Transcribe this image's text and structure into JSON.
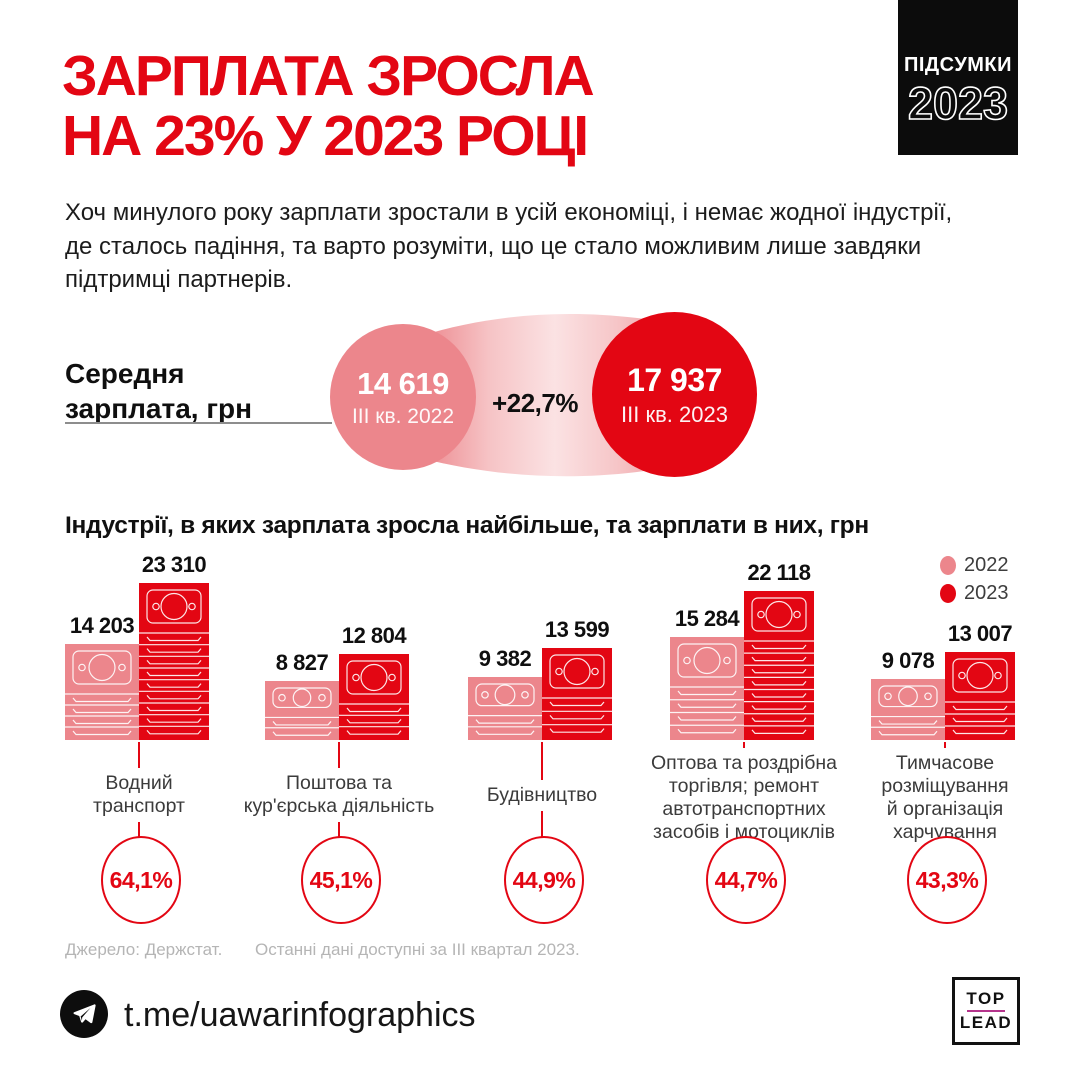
{
  "badge": {
    "line1": "ПІДСУМКИ",
    "line2": "2023"
  },
  "title": {
    "line1": "ЗАРПЛАТА ЗРОСЛА",
    "line2": "НА 23% У 2023 РОЦІ"
  },
  "intro": "Хоч минулого року зарплати зростали в усій економіці, і немає жодної індустрії, де сталось падіння, та варто розуміти, що це стало можливим лише завдяки підтримці партнерів.",
  "industries": {
    "title": "Індустрії, в яких зарплата зросла найбільше, та зарплати в них, грн",
    "legend": [
      {
        "label": "2022",
        "color": "#ec868c"
      },
      {
        "label": "2023",
        "color": "#e30613"
      }
    ]
  },
  "chart_data": [
    {
      "type": "flow-comparison",
      "title_lines": [
        "Середня",
        "зарплата, грн"
      ],
      "from": {
        "value": 14619,
        "display": "14 619",
        "label": "III кв. 2022",
        "color": "#ec868c"
      },
      "to": {
        "value": 17937,
        "display": "17 937",
        "label": "III кв. 2023",
        "color": "#e30613"
      },
      "change": "+22,7%"
    },
    {
      "type": "bar",
      "unit": "грн",
      "categories": [
        "Водний транспорт",
        "Поштова та кур'єрська діяльність",
        "Будівництво",
        "Оптова та роздрібна торгівля; ремонт автотранспортних засобів і мотоциклів",
        "Тимчасове розміщування й організація харчування"
      ],
      "category_lines": [
        [
          "Водний",
          "транспорт"
        ],
        [
          "Поштова та",
          "кур'єрська діяльність"
        ],
        [
          "Будівництво"
        ],
        [
          "Оптова та роздрібна",
          "торгівля; ремонт",
          "автотранспортних",
          "засобів і мотоциклів"
        ],
        [
          "Тимчасове",
          "розміщування",
          "й організація",
          "харчування"
        ]
      ],
      "series": [
        {
          "name": "2022",
          "color": "#ec868c",
          "values": [
            14203,
            8827,
            9382,
            15284,
            9078
          ],
          "labels": [
            "14 203",
            "8 827",
            "9 382",
            "15 284",
            "9 078"
          ]
        },
        {
          "name": "2023",
          "color": "#e30613",
          "values": [
            23310,
            12804,
            13599,
            22118,
            13007
          ],
          "labels": [
            "23 310",
            "12 804",
            "13 599",
            "22 118",
            "13 007"
          ]
        }
      ],
      "growth_labels": [
        "64,1%",
        "45,1%",
        "44,9%",
        "44,7%",
        "43,3%"
      ]
    }
  ],
  "footer": {
    "source": "Джерело: Держстат.",
    "note": "Останні дані доступні за III квартал 2023."
  },
  "bottom": {
    "channel": "t.me/uawarinfographics",
    "logo": {
      "top": "TOP",
      "lead": "LEAD"
    }
  },
  "colors": {
    "accent_red": "#e30613",
    "accent_pink": "#ec868c",
    "badge_bg": "#0c0c0c",
    "footer_gray": "#b5b5b5",
    "logo_line": "#b5348c"
  }
}
